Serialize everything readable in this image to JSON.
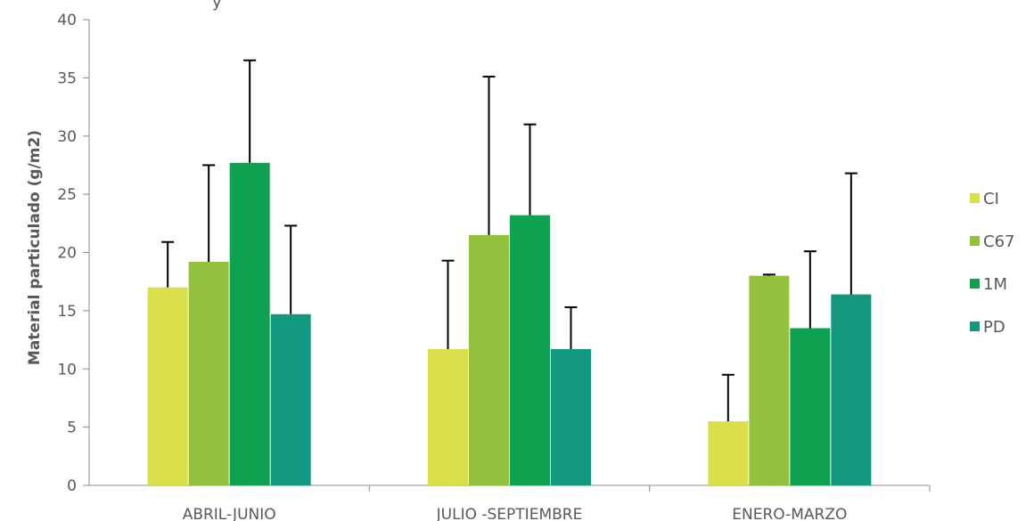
{
  "chart_data": {
    "type": "bar",
    "title_fragment": "y",
    "ylabel": "Material particulado (g/m2)",
    "xlabel": "",
    "ylim": [
      0,
      40
    ],
    "yticks": [
      "0",
      "5",
      "10",
      "15",
      "20",
      "25",
      "30",
      "35",
      "40"
    ],
    "categories": [
      "ABRIL-JUNIO",
      "JULIO -SEPTIEMBRE",
      "ENERO-MARZO"
    ],
    "series": [
      {
        "name": "CI",
        "color": "#d9df4b",
        "values": [
          17.0,
          11.7,
          5.5
        ],
        "errors": [
          3.9,
          7.6,
          4.0
        ]
      },
      {
        "name": "C67",
        "color": "#93c13d",
        "values": [
          19.2,
          21.5,
          18.0
        ],
        "errors": [
          8.3,
          13.6,
          0.1
        ]
      },
      {
        "name": "1M",
        "color": "#0ea250",
        "values": [
          27.7,
          23.2,
          13.5
        ],
        "errors": [
          8.8,
          7.8,
          6.6
        ]
      },
      {
        "name": "PD",
        "color": "#12987e",
        "values": [
          14.7,
          11.7,
          16.4
        ],
        "errors": [
          7.6,
          3.6,
          10.4
        ]
      }
    ],
    "legend_position": "right",
    "grid": false
  }
}
